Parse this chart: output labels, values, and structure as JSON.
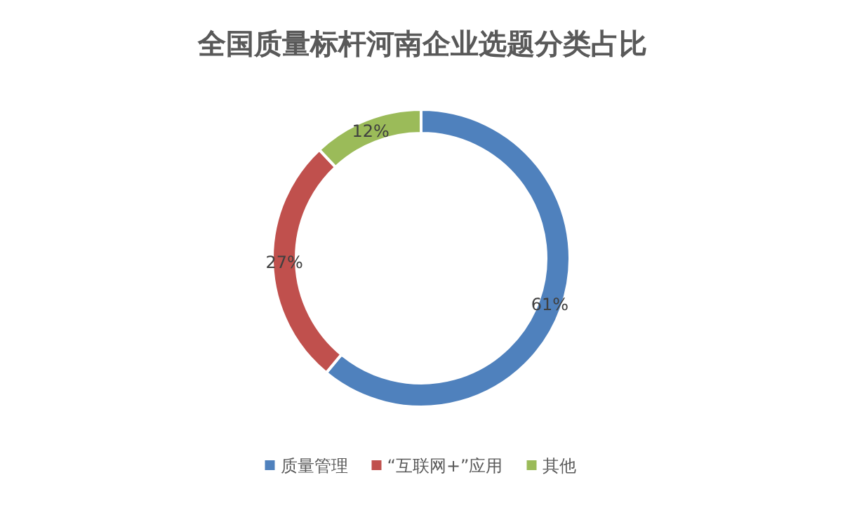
{
  "chart_data": {
    "type": "donut",
    "title": "全国质量标杆河南企业选题分类占比",
    "categories": [
      "质量管理",
      "“互联网+”应用",
      "其他"
    ],
    "values": [
      61,
      27,
      12
    ],
    "colors": [
      "#4f81bd",
      "#c0504d",
      "#9bbb59"
    ],
    "value_labels": [
      "61%",
      "27%",
      "12%"
    ],
    "legend": "bottom"
  }
}
